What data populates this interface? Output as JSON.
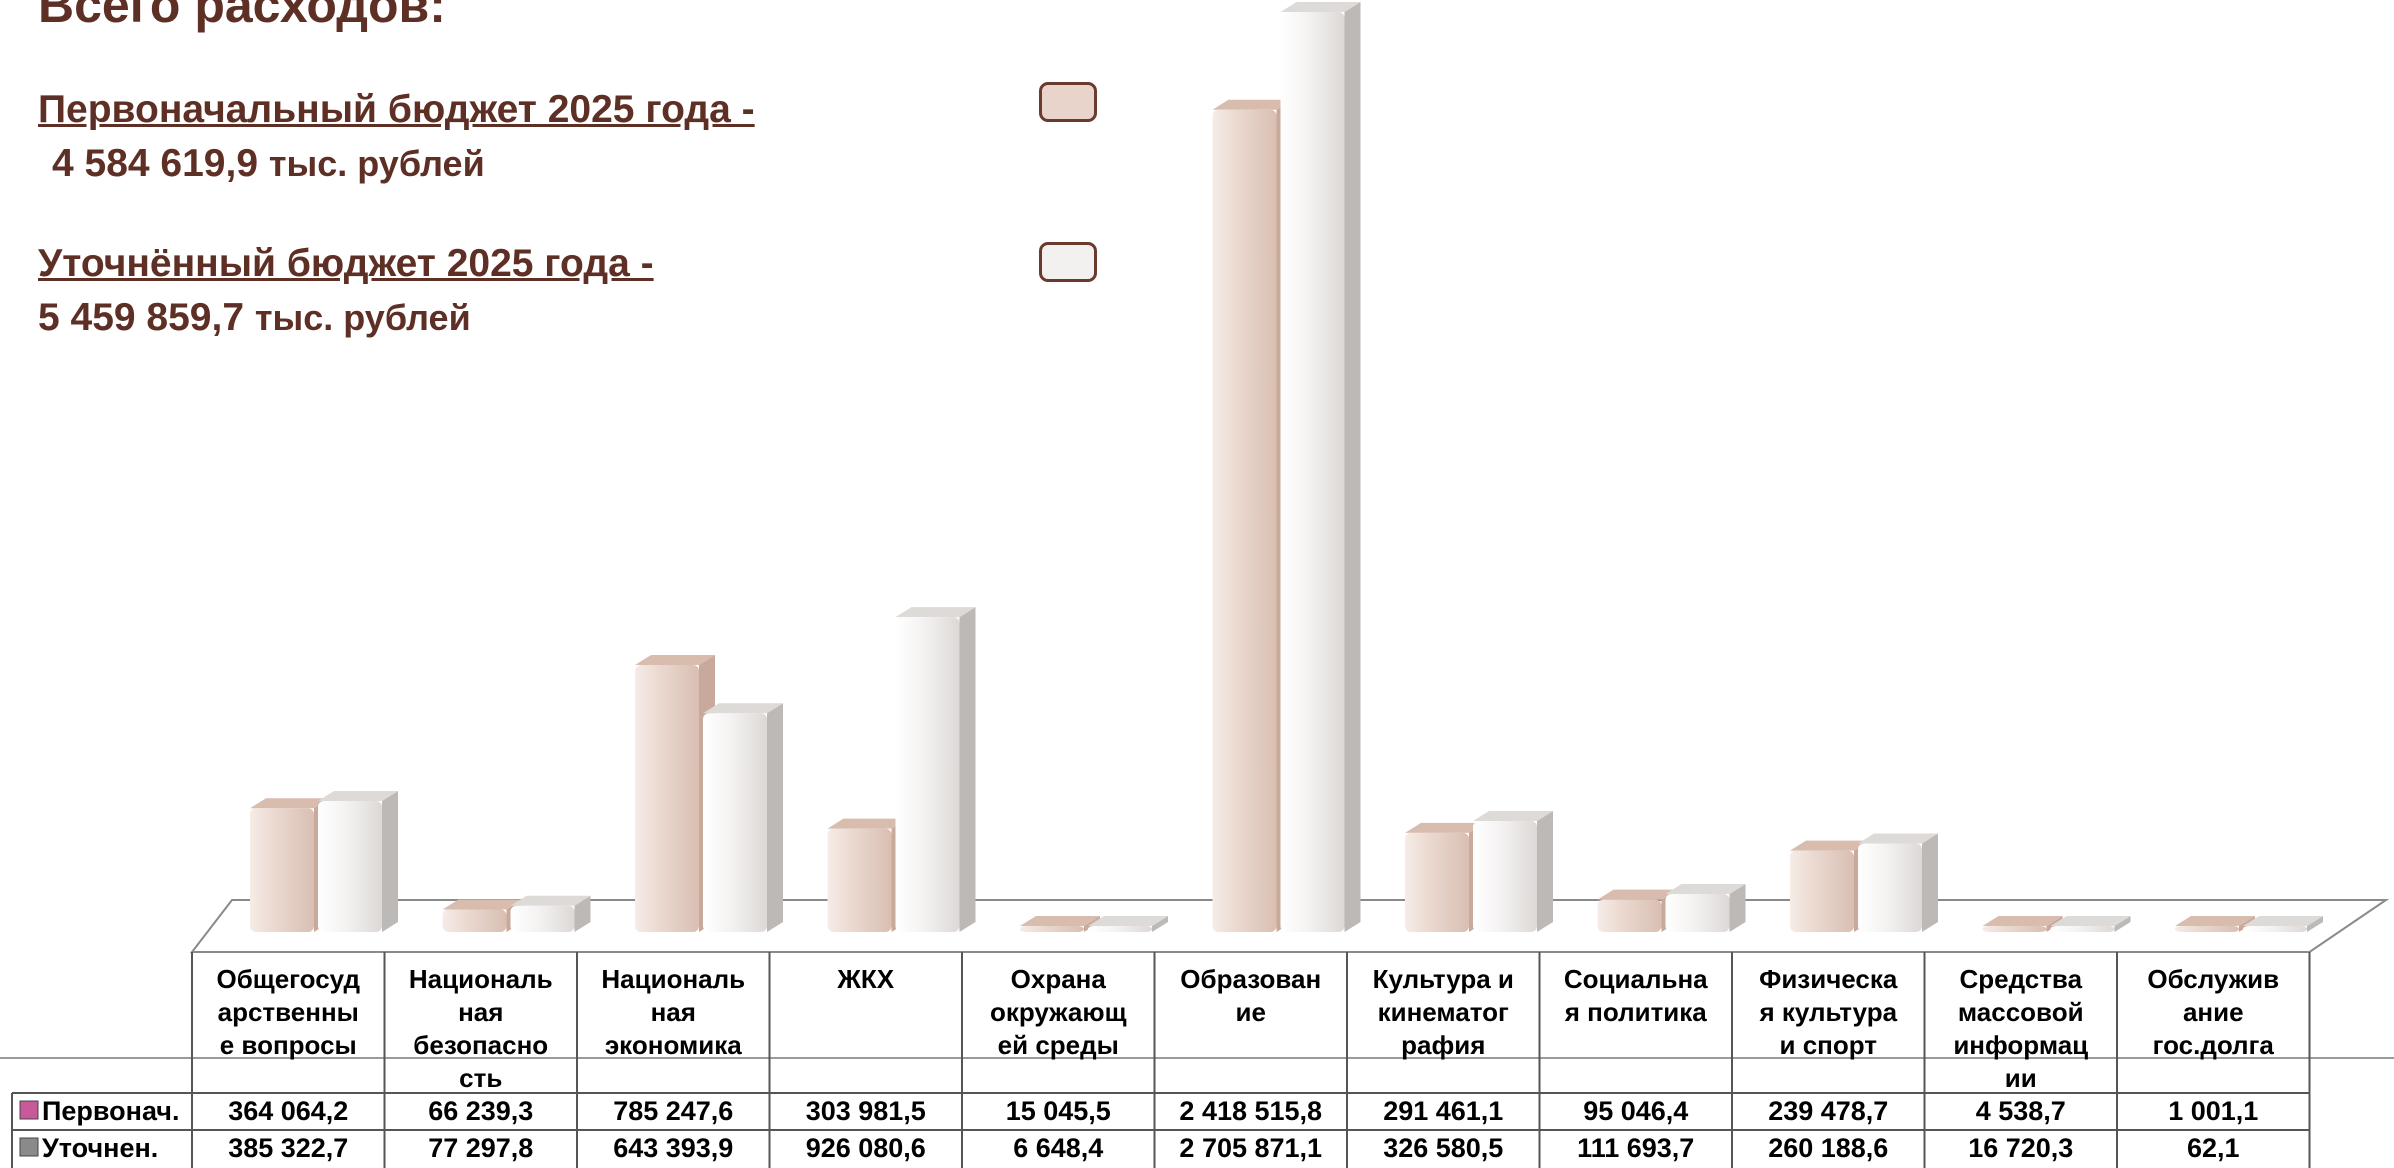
{
  "header": {
    "heading": "Всего расходов:"
  },
  "budgets": {
    "initial": {
      "title": "Первоначальный бюджет 2025 года  -",
      "amount": "4 584 619,9",
      "unit": "тыс. рублей"
    },
    "revised": {
      "title": "Уточнённый бюджет 2025 года -",
      "amount": "5 459 859,7",
      "unit": "тыс. рублей"
    }
  },
  "legend": {
    "initial_color": "#e8d4cb",
    "revised_color": "#f3f1f0",
    "border_color": "#6a3a2e"
  },
  "chart_data": {
    "type": "bar",
    "categories": [
      [
        "Общегосуд",
        "арственны",
        "е вопросы"
      ],
      [
        "Националь",
        "ная",
        "безопасно",
        "сть"
      ],
      [
        "Националь",
        "ная",
        "экономика"
      ],
      [
        "ЖКХ"
      ],
      [
        "Охрана",
        "окружающ",
        "ей среды"
      ],
      [
        "Образован",
        "ие"
      ],
      [
        "Культура и",
        "кинематог",
        "рафия"
      ],
      [
        "Социальна",
        "я политика"
      ],
      [
        "Физическа",
        "я культура",
        "и спорт"
      ],
      [
        "Средства",
        "массовой",
        "информац",
        "ии"
      ],
      [
        "Обслужив",
        "ание",
        "гос.долга"
      ]
    ],
    "series": [
      {
        "name": "Первонач.",
        "values": [
          364064.2,
          66239.3,
          785247.6,
          303981.5,
          15045.5,
          2418515.8,
          291461.1,
          95046.4,
          239478.7,
          4538.7,
          1001.1
        ],
        "labels": [
          "364 064,2",
          "66 239,3",
          "785 247,6",
          "303 981,5",
          "15 045,5",
          "2 418 515,8",
          "291 461,1",
          "95 046,4",
          "239 478,7",
          "4 538,7",
          "1 001,1"
        ],
        "color": "#e8d4cb"
      },
      {
        "name": "Уточнен.",
        "values": [
          385322.7,
          77297.8,
          643393.9,
          926080.6,
          6648.4,
          2705871.1,
          326580.5,
          111693.7,
          260188.6,
          16720.3,
          62.1
        ],
        "labels": [
          "385 322,7",
          "77 297,8",
          "643 393,9",
          "926 080,6",
          "6 648,4",
          "2 705 871,1",
          "326 580,5",
          "111 693,7",
          "260 188,6",
          "16 720,3",
          "62,1"
        ],
        "color": "#f3f1f0"
      }
    ],
    "title": "",
    "xlabel": "",
    "ylabel": "",
    "grid": false,
    "legend": "table"
  }
}
